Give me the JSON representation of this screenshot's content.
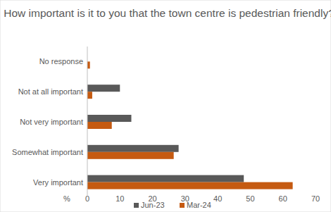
{
  "chart_data": {
    "type": "bar",
    "title": "How important is it to you that the town centre is pedestrian friendly?",
    "orientation": "horizontal",
    "x_label": "%",
    "categories": [
      "Very important",
      "Somewhat important",
      "Not very important",
      "Not at all important",
      "No response"
    ],
    "series": [
      {
        "name": "Jun-23",
        "color": "#595959",
        "values": [
          48,
          28,
          13.5,
          10,
          0
        ]
      },
      {
        "name": "Mar-24",
        "color": "#c55a11",
        "values": [
          63,
          26.5,
          7.5,
          1.5,
          0.8
        ]
      }
    ],
    "xlim": [
      0,
      70
    ],
    "xticks": [
      0,
      10,
      20,
      30,
      40,
      50,
      60,
      70
    ],
    "grid": false,
    "legend": "bottom"
  }
}
